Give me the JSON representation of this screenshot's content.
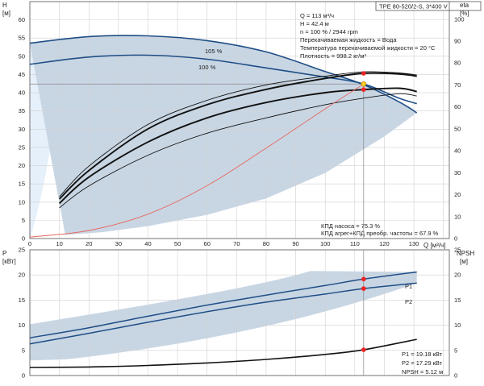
{
  "title": "TPE 80-520/2-S, 3*400 V",
  "colors": {
    "band": "#c8d6e4",
    "band_light": "#e6f0fa",
    "curve_dark": "#1f4e86",
    "curve_black": "#111111",
    "efficiency": "#e8675e",
    "marker_red": "#ee2222",
    "marker_yellow": "#ffcc22"
  },
  "top_axes": {
    "left_label_line1": "H",
    "left_label_line2": "[м]",
    "right_label_line1": "eta",
    "right_label_line2": "[%]",
    "x_label": "Q  [м³/ч]",
    "x_ticks": [
      "0",
      "10",
      "20",
      "30",
      "40",
      "50",
      "60",
      "70",
      "80",
      "90",
      "100",
      "110",
      "120",
      "130"
    ],
    "h_ticks": [
      "0",
      "5",
      "10",
      "15",
      "20",
      "25",
      "30",
      "35",
      "40",
      "45",
      "50",
      "55",
      "60"
    ],
    "eta_ticks": [
      "0",
      "10",
      "20",
      "30",
      "40",
      "50",
      "60",
      "70",
      "80",
      "90",
      "100"
    ]
  },
  "info": {
    "q": "Q = 113 м³/ч",
    "h": "H = 42.4 м",
    "n": "n = 100 % / 2944 rpm",
    "liquid": "Перекачиваемая жидкость = Вода",
    "temp": "Температура перекачиваемой жидкости = 20 °C",
    "density": "Плотность = 998.2 кг/м³"
  },
  "curve_labels": {
    "c105": "105 %",
    "c100": "100 %"
  },
  "efficiency_text": {
    "pump": "КПД насоса = 75.3 %",
    "total": "КПД агрег+КПД преобр. частоты = 67.9 %"
  },
  "bottom_axes": {
    "left_label_line1": "P",
    "left_label_line2": "[кВт]",
    "right_label_line1": "NPSH",
    "right_label_line2": "[м]",
    "p_ticks": [
      "0",
      "5",
      "10",
      "15",
      "20",
      "25"
    ],
    "npsh_ticks": [
      "0",
      "5",
      "10",
      "15",
      "20",
      "25"
    ],
    "p1_label": "P1",
    "p2_label": "P2"
  },
  "results": {
    "p1": "P1 = 19.18 кВт",
    "p2": "P2 = 17.29 кВт",
    "npsh": "NPSH = 5.12 м"
  },
  "chart_data": [
    {
      "type": "line",
      "xlabel": "Q [м³/ч]",
      "ylabel": "H [м]",
      "y2label": "eta [%]",
      "xlim": [
        0,
        142
      ],
      "ylim": [
        0,
        65
      ],
      "y2lim": [
        0,
        108
      ],
      "operating_point": {
        "q": 113,
        "h": 42.4,
        "eta_pump": 75.3,
        "eta_total": 67.9
      },
      "series": [
        {
          "name": "105 %",
          "axis": "H",
          "x": [
            0,
            20,
            40,
            60,
            80,
            100,
            113,
            125,
            131
          ],
          "y": [
            53.6,
            55.4,
            55.6,
            54.3,
            51.2,
            45.8,
            42.2,
            37.5,
            34.5
          ]
        },
        {
          "name": "100 %",
          "axis": "H",
          "x": [
            0,
            20,
            40,
            60,
            80,
            100,
            113,
            125,
            131
          ],
          "y": [
            47.8,
            49.8,
            50.3,
            49.2,
            46.8,
            44.3,
            42.4,
            38.5,
            37.0
          ]
        },
        {
          "axis": "eta",
          "x": [
            10,
            20,
            40,
            60,
            80,
            100,
            113,
            125,
            131
          ],
          "y": [
            18,
            31,
            50,
            61,
            68,
            73,
            75.3,
            75,
            74
          ]
        },
        {
          "axis": "eta",
          "x": [
            10,
            20,
            40,
            60,
            80,
            100,
            113,
            125,
            131
          ],
          "y": [
            16,
            28,
            44,
            55,
            62,
            66.5,
            67.9,
            68.5,
            67
          ]
        },
        {
          "axis": "eta",
          "x": [
            10,
            20,
            40,
            60,
            80,
            100,
            113,
            125,
            131
          ],
          "y": [
            19,
            33,
            52,
            63,
            70,
            74,
            76,
            75.5,
            74.5
          ]
        },
        {
          "axis": "eta",
          "x": [
            10,
            20,
            40,
            60,
            80,
            100,
            113,
            125,
            131
          ],
          "y": [
            14,
            24,
            38,
            48,
            55,
            61,
            64,
            66,
            65
          ]
        },
        {
          "axis": "H",
          "x": [
            0,
            20,
            40,
            60,
            80,
            100,
            113
          ],
          "y": [
            0.4,
            2.2,
            6.7,
            14.5,
            24.8,
            35.6,
            42.4
          ]
        }
      ]
    },
    {
      "type": "line",
      "xlabel": "Q [м³/ч]",
      "ylabel": "P [кВт]",
      "y2label": "NPSH [м]",
      "xlim": [
        0,
        142
      ],
      "ylim": [
        0,
        25
      ],
      "y2lim": [
        0,
        25
      ],
      "operating_point": {
        "q": 113,
        "p1": 19.18,
        "p2": 17.29,
        "npsh": 5.12
      },
      "series": [
        {
          "name": "P1",
          "axis": "P",
          "x": [
            0,
            20,
            40,
            60,
            80,
            100,
            113,
            131
          ],
          "y": [
            7.5,
            9.5,
            11.8,
            14.0,
            16.0,
            17.9,
            19.18,
            20.6
          ]
        },
        {
          "name": "P2",
          "axis": "P",
          "x": [
            0,
            20,
            40,
            60,
            80,
            100,
            113,
            131
          ],
          "y": [
            6.3,
            8.4,
            10.6,
            12.7,
            14.6,
            16.2,
            17.29,
            18.4
          ]
        },
        {
          "axis": "NPSH",
          "x": [
            0,
            20,
            40,
            60,
            80,
            100,
            113,
            131
          ],
          "y": [
            1.6,
            1.7,
            2.0,
            2.5,
            3.2,
            4.2,
            5.12,
            7.2
          ]
        }
      ]
    }
  ]
}
